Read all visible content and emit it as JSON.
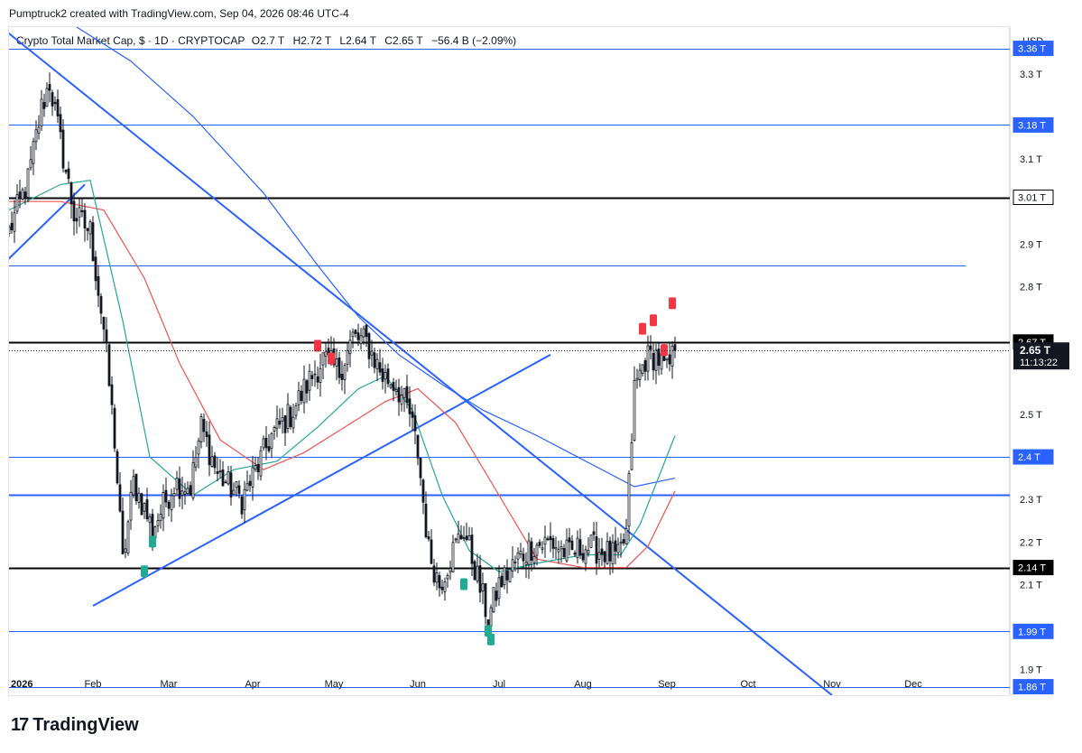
{
  "header": {
    "caption": "Pumptruck2 created with TradingView.com, Sep 04, 2026 08:46 UTC-4"
  },
  "legend": {
    "symbol": "Crypto Total Market Cap, $ · 1D · CRYPTOCAP",
    "open_label": "O",
    "open_value": "2.7 T",
    "high_label": "H",
    "high_value": "2.72 T",
    "low_label": "L",
    "low_value": "2.64 T",
    "close_label": "C",
    "close_value": "2.65 T",
    "change": "−56.4 B (−2.09%)"
  },
  "axis": {
    "currency": "USD"
  },
  "footer": {
    "brand": "TradingView",
    "logo_icon": "tradingview-logo-icon"
  },
  "colors": {
    "up": "#131722",
    "down": "#131722",
    "ma_fast": "#26a69a",
    "ma_mid": "#ef5350",
    "ma_slow": "#2962ff",
    "trend": "#2962ff",
    "hline_blue": "#2962ff",
    "hline_black": "#000000",
    "badge_red": "#f23645",
    "badge_green": "#22ab94"
  },
  "chart_data": {
    "type": "candlestick",
    "symbol": "CRYPTOCAP:TOTAL",
    "interval": "1D",
    "ylim": [
      1.84,
      3.41
    ],
    "y_ticks": [
      "1.9 T",
      "2.1 T",
      "2.2 T",
      "2.3 T",
      "2.5 T",
      "2.8 T",
      "2.9 T",
      "3.1 T",
      "3.3 T"
    ],
    "x_ticks": [
      "2026",
      "Feb",
      "Mar",
      "Apr",
      "May",
      "Jun",
      "Jul",
      "Aug",
      "Sep",
      "Oct",
      "Nov",
      "Dec"
    ],
    "price_levels": [
      {
        "value": 3.36,
        "label": "3.36 T",
        "color": "#2962ff",
        "width": 1,
        "style": "label-blue"
      },
      {
        "value": 3.18,
        "label": "3.18 T",
        "color": "#2962ff",
        "width": 1,
        "style": "label-blue"
      },
      {
        "value": 3.01,
        "label": "3.01 T",
        "color": "#000000",
        "width": 2,
        "style": "label-white"
      },
      {
        "value": 2.85,
        "label": "",
        "color": "#2962ff",
        "width": 1,
        "style": "none"
      },
      {
        "value": 2.67,
        "label": "2.67 T",
        "color": "#000000",
        "width": 2,
        "style": "label-black"
      },
      {
        "value": 2.4,
        "label": "2.4 T",
        "color": "#2962ff",
        "width": 1,
        "style": "label-blue"
      },
      {
        "value": 2.31,
        "label": "",
        "color": "#2962ff",
        "width": 2,
        "style": "none"
      },
      {
        "value": 2.14,
        "label": "2.14 T",
        "color": "#000000",
        "width": 2,
        "style": "label-black"
      },
      {
        "value": 1.99,
        "label": "1.99 T",
        "color": "#2962ff",
        "width": 1,
        "style": "label-blue"
      },
      {
        "value": 1.86,
        "label": "1.86 T",
        "color": "#2962ff",
        "width": 1,
        "style": "label-blue"
      }
    ],
    "last_price": {
      "label": "2.65 T",
      "value": 2.65,
      "countdown": "11:13:22"
    },
    "trendlines": [
      {
        "from": [
          "2025-12-31",
          3.4
        ],
        "to": [
          "2026-11-01",
          1.84
        ]
      },
      {
        "from": [
          "2025-12-31",
          2.86
        ],
        "to": [
          "2026-01-29",
          3.04
        ]
      },
      {
        "from": [
          "2026-02-01",
          2.05
        ],
        "to": [
          "2026-07-20",
          2.64
        ]
      }
    ],
    "badges": [
      {
        "date": "2026-04-25",
        "value": 2.66,
        "type": "red"
      },
      {
        "date": "2026-04-30",
        "value": 2.63,
        "type": "red"
      },
      {
        "date": "2026-08-23",
        "value": 2.7,
        "type": "red"
      },
      {
        "date": "2026-08-27",
        "value": 2.72,
        "type": "red"
      },
      {
        "date": "2026-08-31",
        "value": 2.65,
        "type": "red"
      },
      {
        "date": "2026-09-03",
        "value": 2.76,
        "type": "red"
      },
      {
        "date": "2026-02-20",
        "value": 2.13,
        "type": "green"
      },
      {
        "date": "2026-02-23",
        "value": 2.2,
        "type": "green"
      },
      {
        "date": "2026-06-18",
        "value": 2.1,
        "type": "green"
      },
      {
        "date": "2026-06-27",
        "value": 1.99,
        "type": "green"
      },
      {
        "date": "2026-06-28",
        "value": 1.97,
        "type": "green"
      }
    ],
    "anchors": [
      [
        "2026-01-01",
        2.93
      ],
      [
        "2026-01-08",
        3.05
      ],
      [
        "2026-01-13",
        3.22
      ],
      [
        "2026-01-16",
        3.28
      ],
      [
        "2026-01-20",
        3.14
      ],
      [
        "2026-01-25",
        2.97
      ],
      [
        "2026-01-31",
        2.93
      ],
      [
        "2026-02-05",
        2.7
      ],
      [
        "2026-02-09",
        2.44
      ],
      [
        "2026-02-12",
        2.15
      ],
      [
        "2026-02-16",
        2.34
      ],
      [
        "2026-02-23",
        2.23
      ],
      [
        "2026-03-03",
        2.34
      ],
      [
        "2026-03-09",
        2.33
      ],
      [
        "2026-03-13",
        2.47
      ],
      [
        "2026-03-19",
        2.36
      ],
      [
        "2026-03-28",
        2.3
      ],
      [
        "2026-04-03",
        2.38
      ],
      [
        "2026-04-08",
        2.45
      ],
      [
        "2026-04-15",
        2.5
      ],
      [
        "2026-04-22",
        2.58
      ],
      [
        "2026-04-27",
        2.63
      ],
      [
        "2026-05-03",
        2.6
      ],
      [
        "2026-05-08",
        2.68
      ],
      [
        "2026-05-13",
        2.67
      ],
      [
        "2026-05-19",
        2.59
      ],
      [
        "2026-05-24",
        2.57
      ],
      [
        "2026-05-29",
        2.5
      ],
      [
        "2026-06-01",
        2.41
      ],
      [
        "2026-06-05",
        2.18
      ],
      [
        "2026-06-09",
        2.1
      ],
      [
        "2026-06-14",
        2.18
      ],
      [
        "2026-06-18",
        2.23
      ],
      [
        "2026-06-22",
        2.14
      ],
      [
        "2026-06-27",
        2.02
      ],
      [
        "2026-07-01",
        2.1
      ],
      [
        "2026-07-08",
        2.16
      ],
      [
        "2026-07-13",
        2.19
      ],
      [
        "2026-07-20",
        2.2
      ],
      [
        "2026-07-27",
        2.17
      ],
      [
        "2026-08-01",
        2.19
      ],
      [
        "2026-08-08",
        2.18
      ],
      [
        "2026-08-14",
        2.16
      ],
      [
        "2026-08-17",
        2.22
      ],
      [
        "2026-08-20",
        2.56
      ],
      [
        "2026-08-24",
        2.63
      ],
      [
        "2026-08-28",
        2.64
      ],
      [
        "2026-09-01",
        2.6
      ],
      [
        "2026-09-04",
        2.65
      ]
    ],
    "ma_fast_points": [
      [
        "2026-01-01",
        2.98
      ],
      [
        "2026-01-20",
        3.04
      ],
      [
        "2026-01-31",
        3.05
      ],
      [
        "2026-02-12",
        2.72
      ],
      [
        "2026-02-22",
        2.4
      ],
      [
        "2026-03-10",
        2.31
      ],
      [
        "2026-03-25",
        2.37
      ],
      [
        "2026-04-10",
        2.39
      ],
      [
        "2026-04-25",
        2.47
      ],
      [
        "2026-05-10",
        2.56
      ],
      [
        "2026-05-20",
        2.59
      ],
      [
        "2026-05-30",
        2.51
      ],
      [
        "2026-06-10",
        2.31
      ],
      [
        "2026-06-20",
        2.18
      ],
      [
        "2026-07-01",
        2.13
      ],
      [
        "2026-07-15",
        2.15
      ],
      [
        "2026-08-01",
        2.17
      ],
      [
        "2026-08-15",
        2.17
      ],
      [
        "2026-08-22",
        2.24
      ],
      [
        "2026-09-04",
        2.45
      ]
    ],
    "ma_mid_points": [
      [
        "2026-01-01",
        3.0
      ],
      [
        "2026-01-20",
        3.0
      ],
      [
        "2026-02-05",
        2.98
      ],
      [
        "2026-02-20",
        2.82
      ],
      [
        "2026-03-05",
        2.62
      ],
      [
        "2026-03-20",
        2.44
      ],
      [
        "2026-04-05",
        2.37
      ],
      [
        "2026-04-20",
        2.41
      ],
      [
        "2026-05-05",
        2.47
      ],
      [
        "2026-05-20",
        2.53
      ],
      [
        "2026-06-01",
        2.56
      ],
      [
        "2026-06-15",
        2.48
      ],
      [
        "2026-07-01",
        2.31
      ],
      [
        "2026-07-15",
        2.16
      ],
      [
        "2026-08-01",
        2.14
      ],
      [
        "2026-08-17",
        2.14
      ],
      [
        "2026-08-25",
        2.19
      ],
      [
        "2026-09-04",
        2.32
      ]
    ],
    "ma_slow_points": [
      [
        "2026-01-26",
        3.41
      ],
      [
        "2026-02-15",
        3.33
      ],
      [
        "2026-03-10",
        3.2
      ],
      [
        "2026-04-05",
        3.02
      ],
      [
        "2026-04-25",
        2.85
      ],
      [
        "2026-05-10",
        2.73
      ],
      [
        "2026-05-25",
        2.64
      ],
      [
        "2026-06-10",
        2.57
      ],
      [
        "2026-06-25",
        2.51
      ],
      [
        "2026-07-15",
        2.45
      ],
      [
        "2026-08-05",
        2.38
      ],
      [
        "2026-08-20",
        2.33
      ],
      [
        "2026-09-04",
        2.35
      ]
    ]
  }
}
